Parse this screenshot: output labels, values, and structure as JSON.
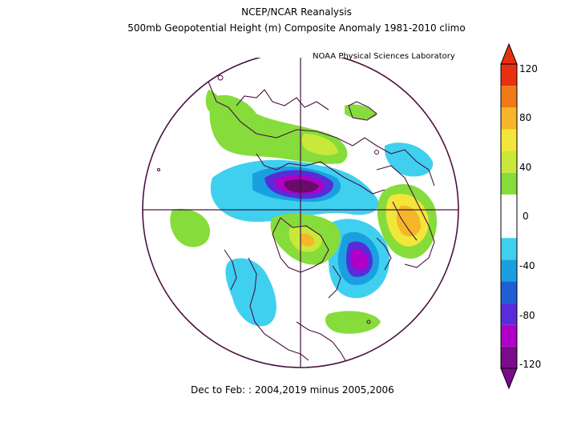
{
  "header": {
    "title": "NCEP/NCAR Reanalysis",
    "subtitle": "500mb Geopotential Height (m) Composite Anomaly 1981-2010 climo"
  },
  "credit": "NOAA Physical Sciences Laboratory",
  "caption": "Dec to Feb: : 2004,2019 minus 2005,2006",
  "colorbar": {
    "ticks": [
      "120",
      "80",
      "40",
      "0",
      "-40",
      "-80",
      "-120"
    ],
    "colors": [
      "#7a0b8a",
      "#b000c8",
      "#5a2bd9",
      "#1f5fd6",
      "#1aa0e0",
      "#3fd0f0",
      "#ffffff",
      "#ffffff",
      "#86dc3a",
      "#c8e83a",
      "#f2e63a",
      "#f5b62a",
      "#f07a1a",
      "#e83010"
    ]
  }
}
